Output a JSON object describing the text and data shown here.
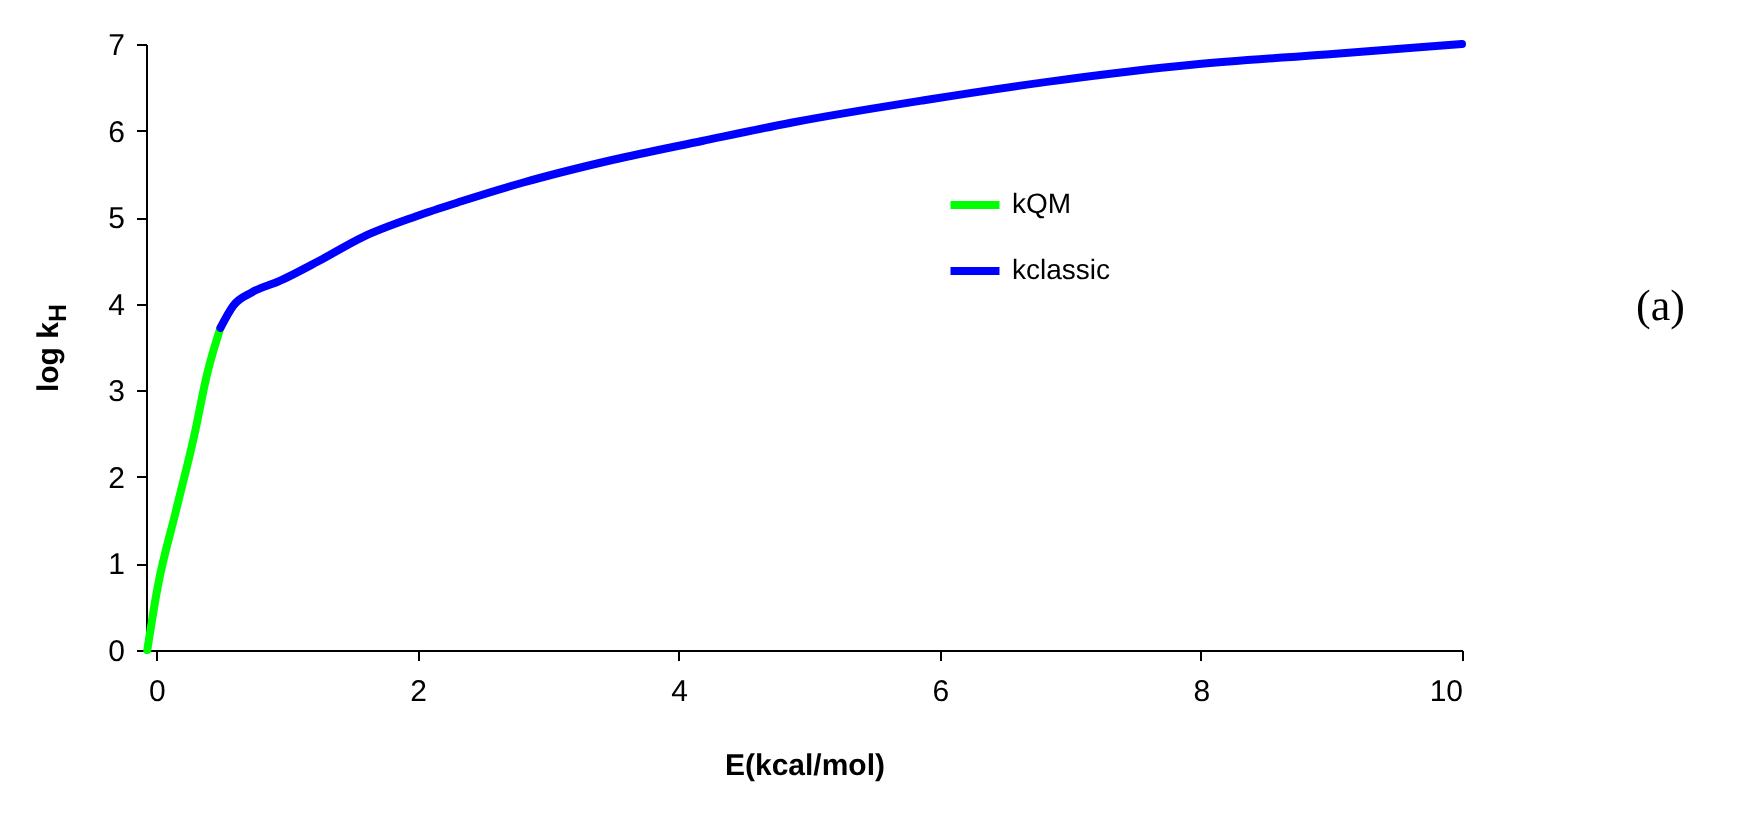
{
  "chart_data": {
    "type": "line",
    "xlabel": "E(kcal/mol)",
    "ylabel": "log k$_{H}$",
    "xlim": [
      -0.08,
      10
    ],
    "ylim": [
      0,
      7
    ],
    "xticks": [
      0,
      2,
      4,
      6,
      8,
      10
    ],
    "yticks": [
      0,
      1,
      2,
      3,
      4,
      5,
      6,
      7
    ],
    "grid": false,
    "legend": "top right",
    "line_style": "solid",
    "marker": "none",
    "annotations": [
      "(a)"
    ],
    "series": [
      {
        "name": "kQM",
        "color": "#00ff00",
        "x": [
          -0.07,
          0.01,
          0.15,
          0.29,
          0.39,
          0.49
        ],
        "values": [
          0,
          0.73,
          1.61,
          2.48,
          3.2,
          3.72
        ]
      },
      {
        "name": "kclassic",
        "color": "#0000ff",
        "x": [
          0.49,
          0.59,
          0.73,
          0.94,
          1.24,
          1.58,
          1.99,
          2.33,
          2.81,
          3.49,
          4.18,
          4.86,
          5.88,
          6.91,
          7.93,
          8.96,
          10
        ],
        "values": [
          3.72,
          3.98,
          4.13,
          4.26,
          4.49,
          4.77,
          5.01,
          5.18,
          5.4,
          5.66,
          5.88,
          6.09,
          6.35,
          6.58,
          6.76,
          6.88,
          7.0
        ]
      }
    ]
  }
}
